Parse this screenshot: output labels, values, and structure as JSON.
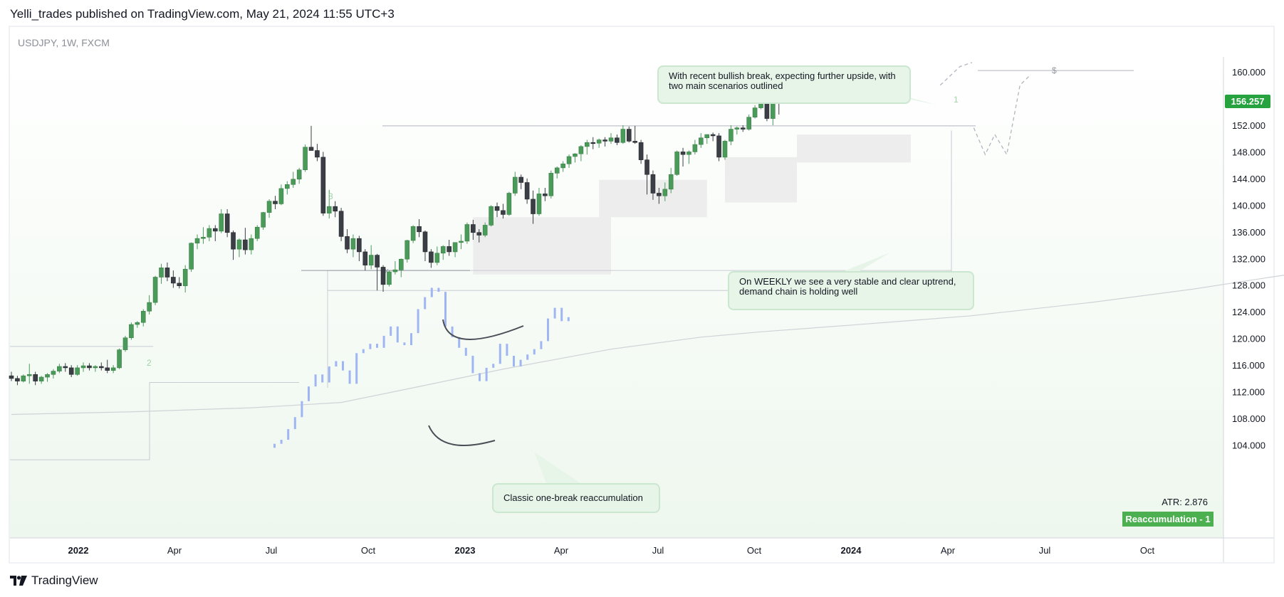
{
  "header": {
    "published": "Yelli_trades published on TradingView.com, May 21, 2024 11:55 UTC+3"
  },
  "symbol": {
    "label": "USDJPY, 1W, FXCM"
  },
  "callouts": {
    "top": "With recent bullish break, expecting further upside, with two main scenarios outlined",
    "weekly": "On WEEKLY we see a very stable and clear uptrend, demand chain is holding well",
    "classic": "Classic one-break reaccumulation"
  },
  "indicators": {
    "atr": "ATR: 2.876",
    "badge": "Reaccumulation - 1"
  },
  "last_price": "156.257",
  "footer": {
    "brand": "TradingView"
  },
  "colors": {
    "up": "#4a9a59",
    "down": "#3b3f45",
    "overlay": "#9fb6f2",
    "zone": "#eaeaea",
    "callout_fill": "#e7f4e8",
    "badge": "#4caf50"
  },
  "chart_data": {
    "type": "candlestick",
    "symbol": "USDJPY",
    "timeframe": "1W",
    "ylim": [
      101,
      162
    ],
    "y_ticks": [
      104,
      108,
      112,
      116,
      120,
      124,
      128,
      132,
      136,
      140,
      144,
      148,
      152,
      156,
      160
    ],
    "y_tick_labels": [
      "104.000",
      "108.000",
      "112.000",
      "116.000",
      "120.000",
      "124.000",
      "128.000",
      "132.000",
      "136.000",
      "140.000",
      "144.000",
      "148.000",
      "152.000",
      "156.000",
      "160.000"
    ],
    "x_ticks": [
      "2022",
      "Apr",
      "Jul",
      "Oct",
      "2023",
      "Apr",
      "Jul",
      "Oct",
      "2024",
      "Apr",
      "Jul",
      "Oct"
    ],
    "last_price": 156.257,
    "ohlc": [
      [
        114.4,
        115.0,
        113.6,
        114.0
      ],
      [
        114.0,
        114.4,
        113.0,
        113.6
      ],
      [
        113.6,
        114.6,
        113.4,
        114.4
      ],
      [
        114.4,
        116.2,
        113.2,
        114.6
      ],
      [
        114.6,
        115.0,
        113.0,
        113.6
      ],
      [
        113.6,
        114.4,
        113.2,
        114.2
      ],
      [
        114.2,
        114.8,
        113.5,
        114.6
      ],
      [
        114.6,
        115.4,
        114.0,
        115.1
      ],
      [
        115.1,
        116.2,
        114.8,
        115.8
      ],
      [
        115.8,
        116.3,
        115.0,
        115.6
      ],
      [
        115.6,
        116.0,
        114.2,
        114.6
      ],
      [
        114.6,
        116.0,
        114.4,
        115.6
      ],
      [
        115.6,
        116.4,
        115.0,
        115.9
      ],
      [
        115.9,
        116.3,
        115.2,
        115.6
      ],
      [
        115.6,
        116.0,
        115.0,
        115.8
      ],
      [
        115.8,
        116.4,
        115.2,
        115.6
      ],
      [
        115.6,
        116.8,
        114.8,
        115.2
      ],
      [
        115.2,
        116.0,
        114.8,
        115.6
      ],
      [
        115.6,
        118.5,
        115.4,
        118.3
      ],
      [
        118.3,
        120.4,
        118.0,
        120.1
      ],
      [
        120.1,
        122.4,
        119.8,
        122.1
      ],
      [
        122.1,
        122.6,
        121.6,
        122.4
      ],
      [
        122.4,
        124.4,
        121.8,
        124.1
      ],
      [
        124.1,
        126.5,
        123.6,
        125.4
      ],
      [
        125.4,
        129.4,
        125.0,
        129.2
      ],
      [
        129.2,
        131.2,
        128.2,
        130.6
      ],
      [
        130.6,
        131.4,
        128.6,
        129.2
      ],
      [
        129.2,
        130.2,
        127.6,
        128.3
      ],
      [
        128.3,
        129.2,
        127.5,
        127.9
      ],
      [
        127.9,
        131.0,
        126.9,
        130.4
      ],
      [
        130.4,
        134.4,
        130.0,
        134.3
      ],
      [
        134.3,
        135.6,
        133.4,
        135.0
      ],
      [
        135.0,
        136.7,
        134.2,
        135.2
      ],
      [
        135.2,
        137.0,
        134.6,
        136.5
      ],
      [
        136.5,
        137.0,
        134.6,
        136.1
      ],
      [
        136.1,
        139.4,
        135.8,
        138.7
      ],
      [
        138.7,
        139.4,
        135.2,
        135.9
      ],
      [
        135.9,
        136.2,
        131.8,
        133.4
      ],
      [
        133.4,
        135.0,
        132.2,
        134.8
      ],
      [
        134.8,
        136.6,
        132.6,
        133.3
      ],
      [
        133.3,
        135.6,
        132.6,
        135.0
      ],
      [
        135.0,
        137.0,
        134.6,
        136.7
      ],
      [
        136.7,
        139.0,
        136.3,
        138.9
      ],
      [
        138.9,
        140.9,
        138.1,
        140.6
      ],
      [
        140.6,
        141.4,
        139.4,
        140.2
      ],
      [
        140.2,
        143.1,
        140.0,
        142.5
      ],
      [
        142.5,
        143.6,
        141.6,
        143.1
      ],
      [
        143.1,
        145.0,
        142.6,
        143.9
      ],
      [
        143.9,
        145.6,
        143.2,
        145.3
      ],
      [
        145.3,
        149.1,
        145.0,
        148.7
      ],
      [
        148.7,
        151.9,
        148.6,
        148.2
      ],
      [
        148.2,
        149.2,
        146.6,
        147.2
      ],
      [
        147.2,
        148.0,
        138.4,
        138.8
      ],
      [
        138.8,
        142.3,
        138.0,
        139.8
      ],
      [
        139.8,
        140.6,
        138.2,
        139.1
      ],
      [
        139.1,
        139.6,
        134.6,
        135.3
      ],
      [
        135.3,
        136.4,
        132.8,
        133.4
      ],
      [
        133.4,
        135.6,
        132.2,
        135.0
      ],
      [
        135.0,
        135.4,
        131.6,
        133.0
      ],
      [
        133.0,
        133.4,
        130.2,
        131.0
      ],
      [
        131.0,
        134.0,
        130.4,
        132.5
      ],
      [
        132.5,
        132.7,
        127.2,
        130.7
      ],
      [
        130.7,
        131.0,
        127.0,
        128.1
      ],
      [
        128.1,
        130.2,
        127.8,
        130.0
      ],
      [
        130.0,
        131.6,
        129.6,
        130.3
      ],
      [
        130.3,
        132.0,
        129.2,
        131.9
      ],
      [
        131.9,
        134.8,
        131.4,
        134.7
      ],
      [
        134.7,
        137.0,
        134.3,
        136.8
      ],
      [
        136.8,
        137.9,
        135.2,
        136.0
      ],
      [
        136.0,
        136.2,
        131.6,
        133.0
      ],
      [
        133.0,
        133.4,
        130.6,
        131.4
      ],
      [
        131.4,
        133.8,
        131.0,
        132.8
      ],
      [
        132.8,
        134.0,
        131.8,
        133.8
      ],
      [
        133.8,
        134.8,
        132.4,
        133.0
      ],
      [
        133.0,
        134.4,
        132.2,
        134.4
      ],
      [
        134.4,
        135.6,
        133.4,
        134.6
      ],
      [
        134.6,
        137.4,
        134.2,
        137.1
      ],
      [
        137.1,
        137.8,
        134.8,
        135.9
      ],
      [
        135.9,
        136.4,
        134.4,
        135.5
      ],
      [
        135.5,
        137.4,
        135.2,
        137.0
      ],
      [
        137.0,
        140.0,
        136.8,
        139.8
      ],
      [
        139.8,
        140.4,
        138.2,
        139.2
      ],
      [
        139.2,
        140.2,
        138.0,
        138.6
      ],
      [
        138.6,
        142.0,
        138.4,
        141.8
      ],
      [
        141.8,
        145.0,
        141.4,
        144.2
      ],
      [
        144.2,
        144.6,
        142.4,
        143.4
      ],
      [
        143.4,
        144.0,
        140.2,
        140.9
      ],
      [
        140.9,
        142.2,
        137.2,
        138.7
      ],
      [
        138.7,
        142.6,
        138.4,
        141.7
      ],
      [
        141.7,
        142.6,
        140.6,
        141.4
      ],
      [
        141.4,
        145.2,
        141.0,
        144.8
      ],
      [
        144.8,
        145.8,
        144.0,
        145.6
      ],
      [
        145.6,
        146.6,
        145.0,
        146.2
      ],
      [
        146.2,
        147.6,
        145.6,
        147.3
      ],
      [
        147.3,
        147.8,
        146.4,
        147.7
      ],
      [
        147.7,
        149.0,
        146.6,
        148.8
      ],
      [
        148.8,
        149.8,
        147.6,
        149.4
      ],
      [
        149.4,
        150.2,
        148.4,
        149.3
      ],
      [
        149.3,
        150.0,
        148.6,
        149.8
      ],
      [
        149.8,
        150.2,
        148.8,
        149.6
      ],
      [
        149.6,
        150.8,
        149.2,
        150.1
      ],
      [
        150.1,
        150.6,
        149.0,
        149.4
      ],
      [
        149.4,
        152.0,
        149.2,
        151.4
      ],
      [
        151.4,
        151.8,
        149.4,
        149.6
      ],
      [
        149.6,
        151.9,
        149.2,
        149.4
      ],
      [
        149.4,
        149.8,
        146.2,
        146.8
      ],
      [
        146.8,
        147.6,
        141.6,
        144.6
      ],
      [
        144.6,
        145.2,
        140.8,
        141.8
      ],
      [
        141.8,
        142.6,
        140.2,
        141.4
      ],
      [
        141.4,
        143.4,
        140.6,
        142.4
      ],
      [
        142.4,
        145.6,
        141.8,
        144.6
      ],
      [
        144.6,
        148.2,
        144.4,
        148.0
      ],
      [
        148.0,
        148.6,
        145.8,
        147.6
      ],
      [
        147.6,
        148.2,
        146.2,
        148.0
      ],
      [
        148.0,
        149.8,
        147.6,
        149.1
      ],
      [
        149.1,
        150.8,
        148.6,
        150.1
      ],
      [
        150.1,
        150.6,
        149.2,
        150.6
      ],
      [
        150.6,
        150.9,
        149.6,
        150.4
      ],
      [
        150.4,
        150.8,
        146.6,
        147.2
      ],
      [
        147.2,
        149.8,
        146.8,
        149.6
      ],
      [
        149.6,
        152.0,
        149.0,
        151.4
      ],
      [
        151.4,
        151.8,
        150.6,
        151.6
      ],
      [
        151.6,
        152.0,
        151.0,
        151.4
      ],
      [
        151.4,
        153.6,
        151.2,
        153.2
      ],
      [
        153.2,
        155.0,
        153.0,
        154.6
      ],
      [
        154.6,
        160.2,
        154.4,
        158.4
      ],
      [
        158.4,
        160.2,
        152.6,
        153.0
      ],
      [
        153.0,
        156.2,
        152.0,
        155.8
      ],
      [
        155.8,
        156.8,
        153.6,
        155.6
      ],
      [
        155.6,
        157.1,
        155.4,
        156.3
      ]
    ],
    "overlay_series": [
      104.2,
      104.8,
      106.4,
      108.2,
      110.6,
      112.8,
      114.6,
      113.4,
      115.8,
      116.6,
      115.2,
      113.2,
      117.8,
      118.4,
      119.2,
      118.6,
      120.4,
      121.8,
      119.4,
      119.0,
      120.8,
      124.4,
      126.2,
      127.6,
      127.0,
      121.8,
      120.2,
      118.6,
      117.4,
      114.8,
      113.6,
      115.6,
      116.2,
      119.2,
      117.4,
      115.8,
      116.8,
      117.6,
      118.4,
      119.6,
      123.0,
      124.6,
      122.6,
      123.2
    ],
    "ma_series": [
      108.6,
      109.0,
      109.6,
      110.4,
      112.6,
      115.4,
      118.4,
      120.2,
      121.0,
      122.0,
      123.4,
      125.4,
      127.4,
      129.2,
      131.6
    ],
    "ma_x_weeks": [
      0,
      20,
      40,
      55,
      67,
      82,
      100,
      115,
      125,
      140,
      160,
      180,
      197,
      210,
      228
    ],
    "horizontal_levels": [
      151.9,
      130.2,
      127.8
    ],
    "scenario_paths": [
      [
        [
          154.9,
          158.0
        ],
        [
          158.2,
          160.8
        ],
        [
          160.2,
          161.4
        ]
      ],
      [
        [
          160.5,
          151.6
        ],
        [
          162.4,
          147.6
        ],
        [
          164.0,
          150.6
        ],
        [
          166.0,
          147.6
        ],
        [
          168.2,
          158.0
        ],
        [
          170.0,
          159.6
        ]
      ]
    ],
    "annotations": [
      "1",
      "2",
      "3",
      "$",
      "x"
    ]
  }
}
